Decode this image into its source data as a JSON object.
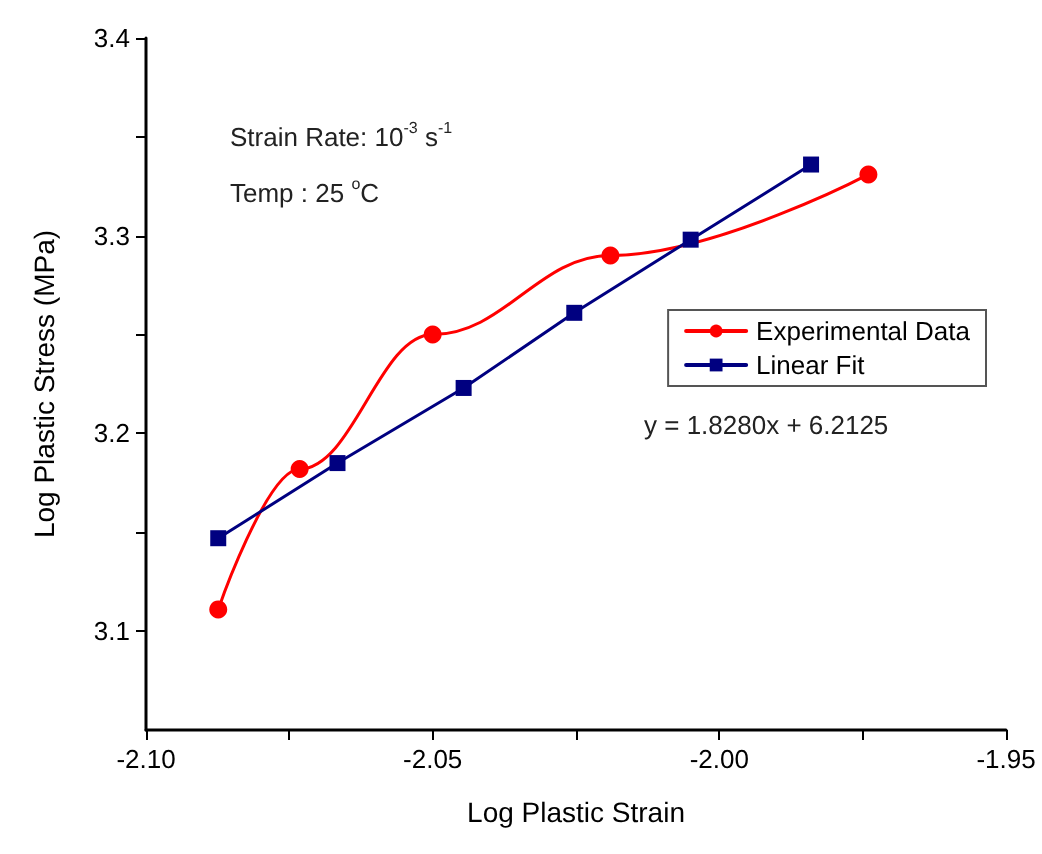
{
  "chart_data": {
    "type": "line",
    "xlabel": "Log Plastic Strain",
    "ylabel": "Log Plastic Stress (MPa)",
    "annotations": [
      "Strain Rate: 10$^{-3}$ s$^{-1}$",
      "Temp : 25 $^{o}$C",
      "y = 1.8280x + 6.2125"
    ],
    "series": [
      {
        "name": "Experimental Data",
        "color": "#ff0000",
        "marker": "circle",
        "x": [
          -2.0874,
          -2.0732,
          -2.05,
          -2.019,
          -1.974
        ],
        "values": [
          3.111,
          3.182,
          3.25,
          3.29,
          3.331
        ]
      },
      {
        "name": "Linear Fit",
        "color": "#000080",
        "marker": "square",
        "x": [
          -2.0874,
          -2.0666,
          -2.0446,
          -2.0253,
          -2.005,
          -1.984
        ],
        "values": [
          3.147,
          3.185,
          3.223,
          3.261,
          3.298,
          3.336
        ]
      }
    ],
    "xlim": [
      -2.1,
      -1.95
    ],
    "xticks": [
      {
        "value": -2.1,
        "label": "-2.10"
      },
      {
        "value": -2.075,
        "label": null
      },
      {
        "value": -2.05,
        "label": "-2.05"
      },
      {
        "value": -2.025,
        "label": null
      },
      {
        "value": -2.0,
        "label": "-2.00"
      },
      {
        "value": -1.975,
        "label": null
      },
      {
        "value": -1.95,
        "label": "-1.95"
      }
    ],
    "ylim": [
      3.05,
      3.4
    ],
    "yticks": [
      3.1,
      {
        "value": 3.15,
        "label": null
      },
      3.2,
      {
        "value": 3.25,
        "label": null
      },
      3.3,
      {
        "value": 3.35,
        "label": null
      },
      3.4
    ],
    "grid": false,
    "legend": "right",
    "line_style": "solid"
  }
}
